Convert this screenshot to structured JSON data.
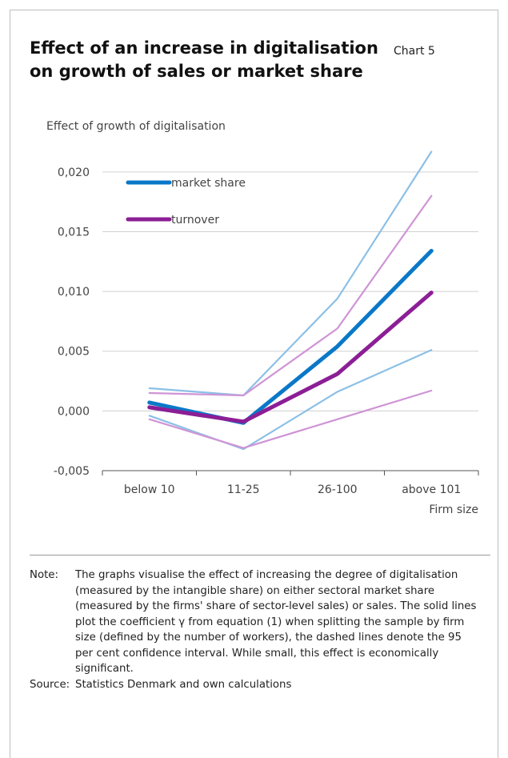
{
  "header": {
    "title": "Effect of an increase in digitalisation on growth of sales or market share",
    "chart_number": "Chart 5"
  },
  "chart_data": {
    "type": "line",
    "title": "Effect of an increase in digitalisation on growth of sales or market share",
    "ylabel": "Effect of growth of digitalisation",
    "xlabel": "Firm size",
    "categories": [
      "below 10",
      "11-25",
      "26-100",
      "above 101"
    ],
    "ylim": [
      -0.005,
      0.022
    ],
    "yticks": [
      -0.005,
      0.0,
      0.005,
      0.01,
      0.015,
      0.02
    ],
    "ytick_labels": [
      "-0,005",
      "0,000",
      "0,005",
      "0,010",
      "0,015",
      "0,020"
    ],
    "grid": "horizontal",
    "legend_placement": "top-left",
    "series": [
      {
        "name": "market share",
        "role": "estimate",
        "color": "#0a78c8",
        "values": [
          0.0007,
          -0.001,
          0.0054,
          0.0134
        ]
      },
      {
        "role": "upper",
        "color": "#8cc0e6",
        "values": [
          0.0019,
          0.0013,
          0.0094,
          0.0217
        ]
      },
      {
        "role": "lower",
        "color": "#8cc0e6",
        "values": [
          -0.0004,
          -0.0032,
          0.0016,
          0.0051
        ]
      },
      {
        "name": "turnover",
        "role": "estimate",
        "color": "#8c1e96",
        "values": [
          0.0003,
          -0.0009,
          0.0031,
          0.0099
        ]
      },
      {
        "role": "upper",
        "color": "#cf94d5",
        "values": [
          0.0015,
          0.0013,
          0.0069,
          0.018
        ]
      },
      {
        "role": "lower",
        "color": "#cf94d5",
        "values": [
          -0.0007,
          -0.0031,
          -0.0007,
          0.0017
        ]
      }
    ]
  },
  "notes": {
    "note_label": "Note:",
    "note_text": "The graphs visualise the effect of increasing the degree of digitalisation (measured by the intangible share) on either sectoral market share (measured by the firms' share of sector-level sales) or sales. The solid lines plot the coefficient γ from equation (1) when splitting the sample by firm size (defined by the number of workers), the dashed lines denote the 95 per cent confidence interval. While small, this effect is economically significant.",
    "source_label": "Source:",
    "source_text": "Statistics Denmark and own calculations"
  }
}
